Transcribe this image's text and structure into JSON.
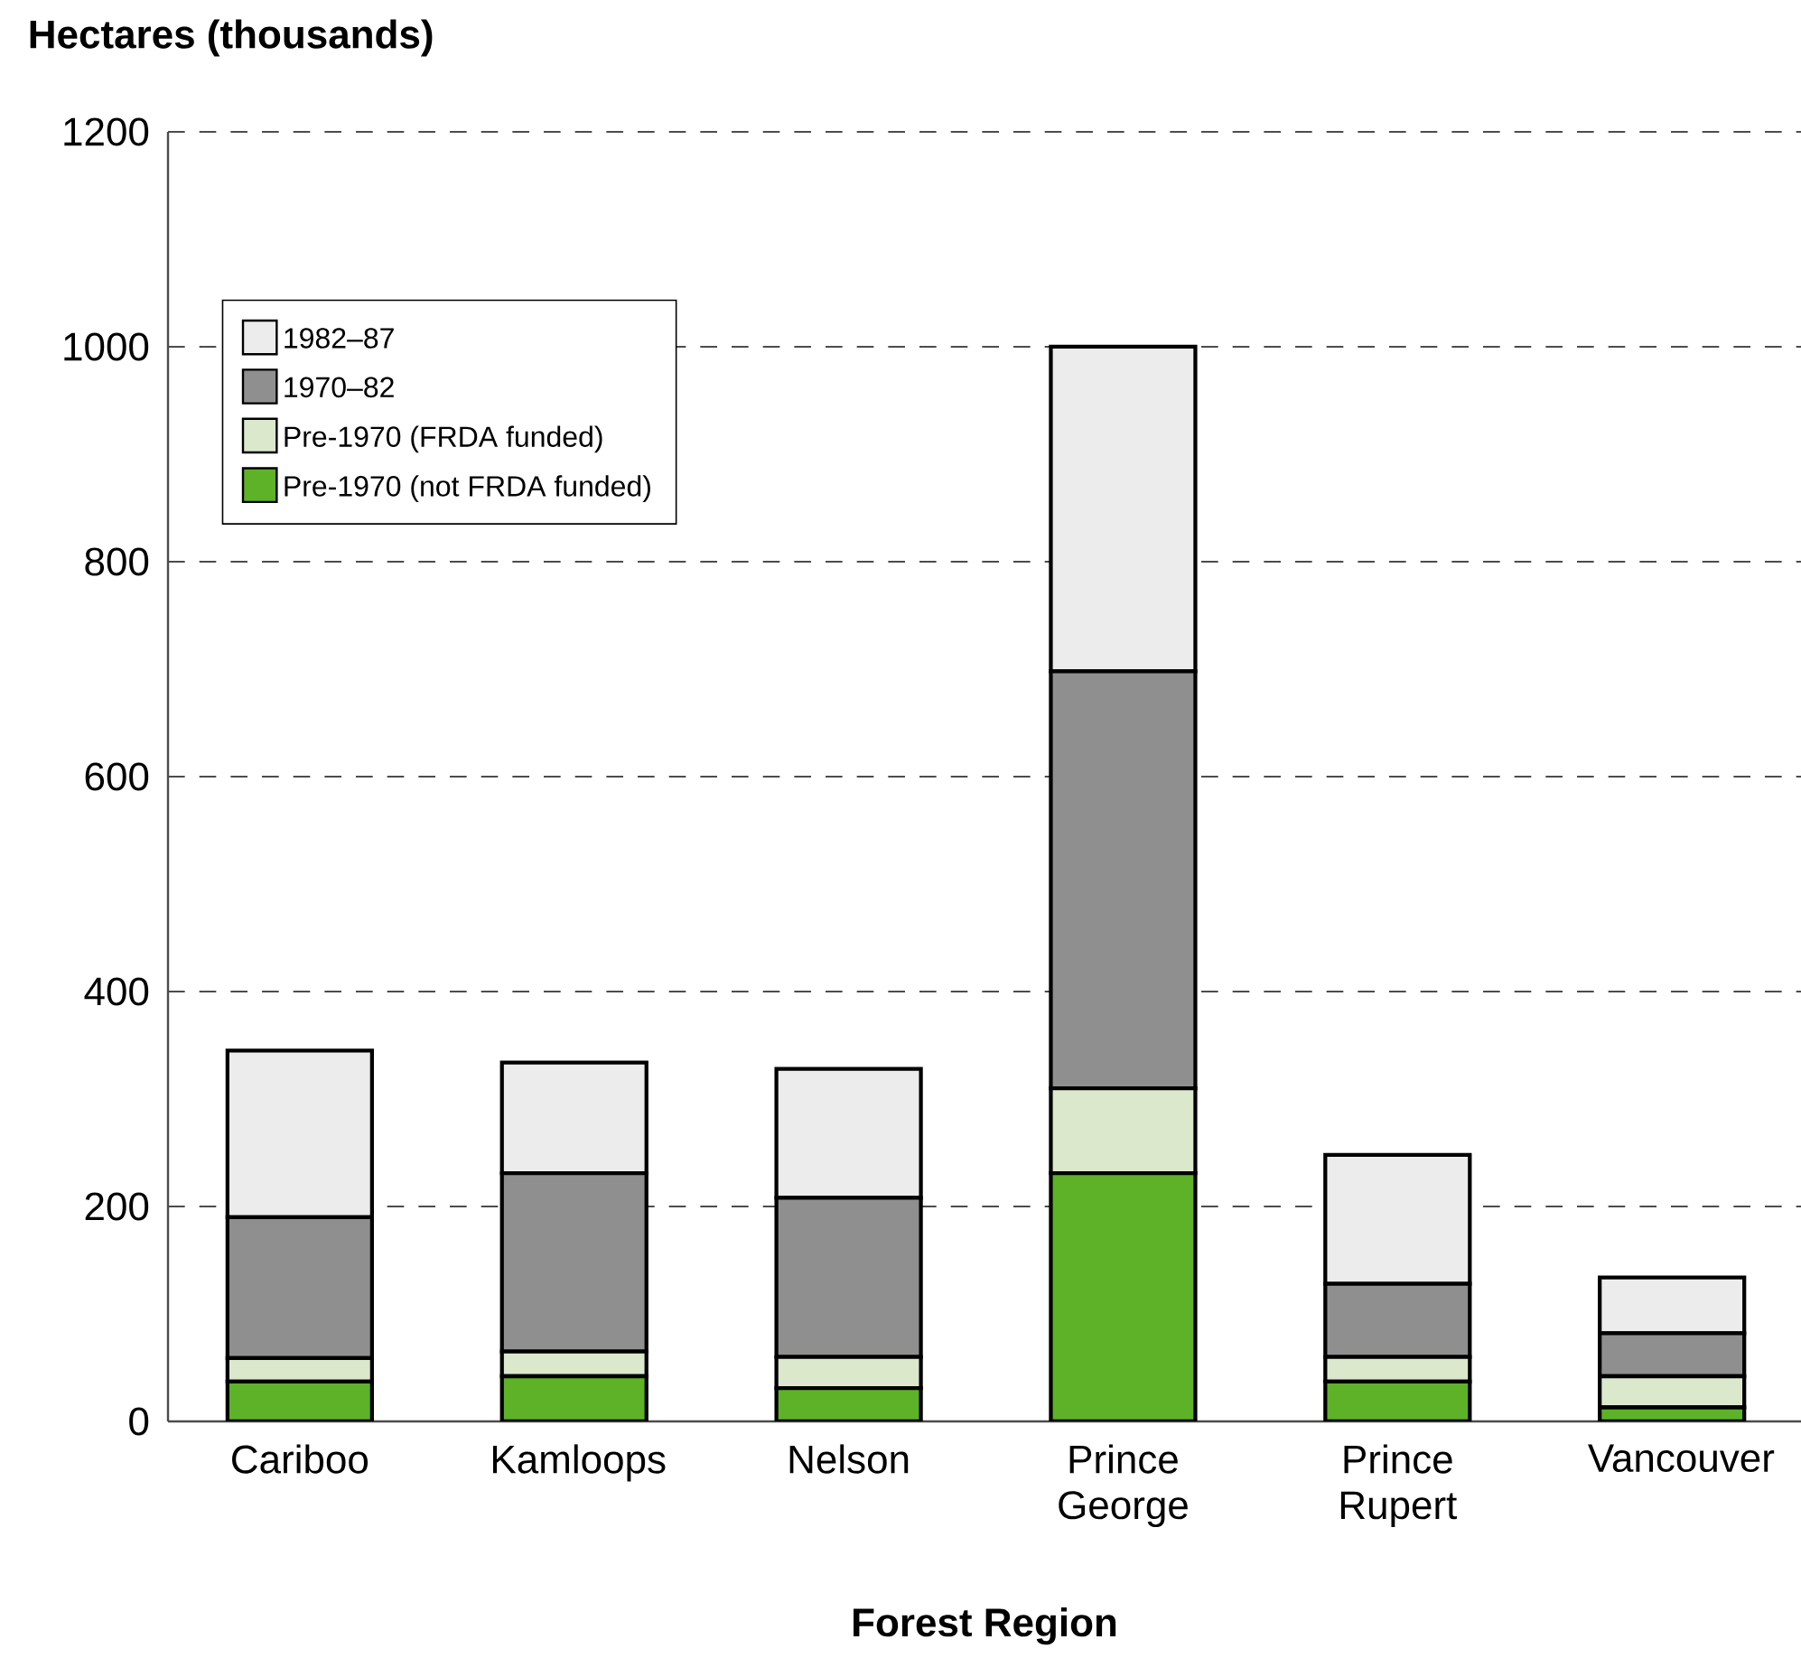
{
  "chart_data": {
    "type": "bar",
    "stacked": true,
    "xlabel": "Forest Region",
    "ylabel": "Hectares (thousands)",
    "categories": [
      "Cariboo",
      "Kamloops",
      "Nelson",
      "Prince George",
      "Prince Rupert",
      "Vancouver"
    ],
    "series": [
      {
        "name": "Pre-1970 (not FRDA funded)",
        "color": "#5db227",
        "values": [
          37,
          42,
          31,
          231,
          37,
          13
        ]
      },
      {
        "name": "Pre-1970 (FRDA funded)",
        "color": "#dce8cc",
        "values": [
          22,
          23,
          29,
          79,
          23,
          29
        ]
      },
      {
        "name": "1970–82",
        "color": "#8f8f8f",
        "values": [
          131,
          166,
          148,
          388,
          68,
          40
        ]
      },
      {
        "name": "1982–87",
        "color": "#ececec",
        "values": [
          155,
          103,
          120,
          302,
          120,
          52
        ]
      }
    ],
    "ylim": [
      0,
      1200
    ],
    "yticks": [
      0,
      200,
      400,
      600,
      800,
      1000,
      1200
    ],
    "grid": "y",
    "legend": "top left"
  }
}
